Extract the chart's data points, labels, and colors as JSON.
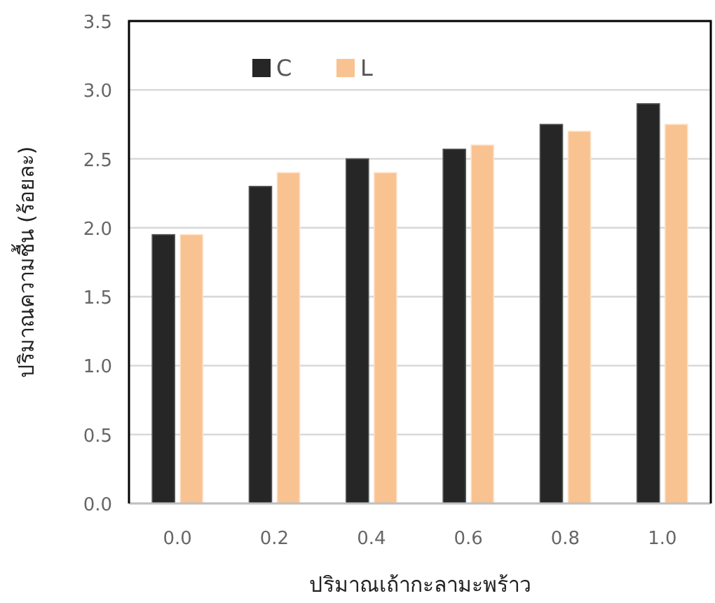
{
  "chart_data": {
    "type": "bar",
    "xlabel": "ปริมาณเถ้ากะลามะพร้าว",
    "ylabel": "ปริมาณความชื้น (ร้อยละ)",
    "categories": [
      "0.0",
      "0.2",
      "0.4",
      "0.6",
      "0.8",
      "1.0"
    ],
    "series": [
      {
        "name": "C",
        "color": "#262626",
        "values": [
          1.95,
          2.3,
          2.5,
          2.57,
          2.75,
          2.9
        ]
      },
      {
        "name": "L",
        "color": "#f9c291",
        "values": [
          1.95,
          2.4,
          2.4,
          2.6,
          2.7,
          2.75
        ]
      }
    ],
    "ylim": [
      0,
      3.5
    ],
    "yticks": [
      {
        "value": 0,
        "label": "0.0"
      },
      0.5,
      {
        "value": 1,
        "label": "1.0"
      },
      1.5,
      {
        "value": 2,
        "label": "2.0"
      },
      2.5,
      {
        "value": 3,
        "label": "3.0"
      },
      3.5
    ],
    "grid": "y",
    "legend": "top left"
  }
}
